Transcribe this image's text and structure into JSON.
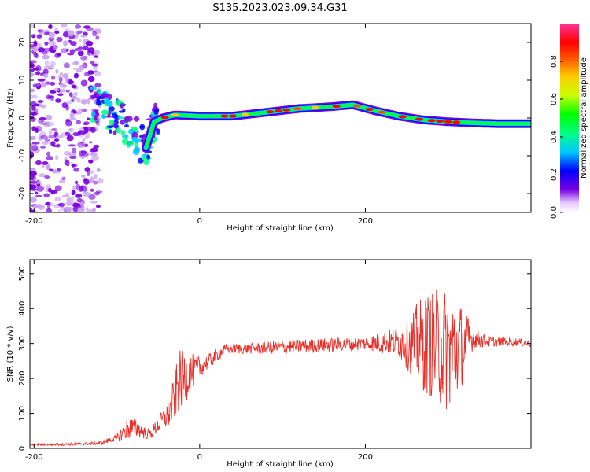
{
  "title": "S135.2023.023.09.34.G31",
  "colors": {
    "snr_line": "#e8302a",
    "axis": "#000000",
    "spectro_low": "#7b00e0",
    "spectro_high": "#ff0000"
  },
  "chart_data": [
    {
      "type": "heatmap",
      "xlabel": "Height of straight line (km)",
      "ylabel": "Frequency (Hz)",
      "xlim": [
        -205,
        400
      ],
      "ylim": [
        -25,
        25
      ],
      "xticks": [
        -200,
        0,
        200
      ],
      "yticks": [
        -20,
        -10,
        0,
        10,
        20
      ],
      "colorbar": {
        "label": "Normalized spectral amplitude",
        "range": [
          0,
          1
        ],
        "ticks": [
          "0.0",
          "0.2",
          "0.4",
          "0.6",
          "0.8"
        ],
        "colormap": "hsv-like: violet-blue-cyan-green-yellow-orange-red-pink"
      },
      "ridge": {
        "x": [
          -140,
          -120,
          -100,
          -80,
          -65,
          -55,
          -45,
          -30,
          0,
          40,
          80,
          120,
          160,
          185,
          210,
          240,
          270,
          300,
          330,
          360,
          400
        ],
        "freq": [
          5,
          2,
          0,
          -4,
          -8,
          -1,
          0,
          0.8,
          0.5,
          0.5,
          1.5,
          2.5,
          3,
          3.5,
          2,
          0.5,
          -0.5,
          -1,
          -1.3,
          -1.5,
          -1.5
        ]
      }
    },
    {
      "type": "line",
      "xlabel": "Height of straight line (km)",
      "ylabel": "SNR (10 * v/v)",
      "xlim": [
        -205,
        400
      ],
      "ylim": [
        0,
        540
      ],
      "xticks": [
        -200,
        0,
        200
      ],
      "yticks": [
        0,
        100,
        200,
        300,
        400,
        500
      ],
      "series": [
        {
          "values_description": "noisy SNR trace",
          "x": [
            -205,
            -150,
            -120,
            -100,
            -85,
            -75,
            -60,
            -45,
            -35,
            -25,
            -15,
            -5,
            5,
            15,
            25,
            35,
            60,
            100,
            150,
            200,
            240,
            270,
            290,
            300,
            310,
            320,
            330,
            350,
            380,
            400
          ],
          "y": [
            10,
            12,
            15,
            30,
            60,
            55,
            40,
            80,
            110,
            190,
            210,
            225,
            240,
            255,
            275,
            285,
            285,
            290,
            295,
            300,
            305,
            300,
            290,
            280,
            285,
            300,
            315,
            305,
            305,
            300
          ],
          "noise": [
            3,
            4,
            5,
            10,
            35,
            25,
            15,
            30,
            50,
            90,
            70,
            40,
            25,
            20,
            18,
            15,
            15,
            20,
            20,
            20,
            45,
            140,
            170,
            180,
            150,
            100,
            30,
            15,
            12,
            10
          ]
        }
      ]
    }
  ]
}
